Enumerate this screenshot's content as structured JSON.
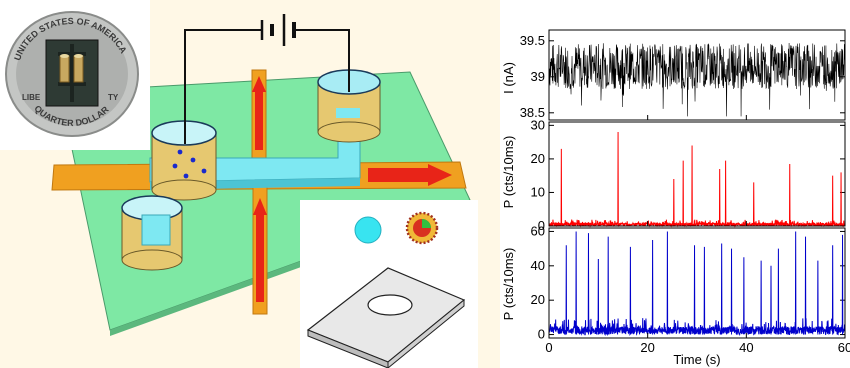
{
  "colors": {
    "background": "#fff8e6",
    "chip": "#7ee8a4",
    "channel": "#7ee8f2",
    "side_channel": "#f0a020",
    "arrow": "#e82418",
    "well_wall": "#e6c870",
    "trace_current": "#000000",
    "trace_red": "#ff0000",
    "trace_blue": "#0000cc"
  },
  "coin_photo": {
    "text_top": "UNITED STATES OF AMERICA",
    "text_bottom": "QUARTER DOLLAR",
    "text_left": "LIBE",
    "text_right": "TY"
  },
  "diagram": {
    "icons": [
      "battery-icon",
      "nanoparticle-icon",
      "virus-icon",
      "membrane-pore-icon"
    ]
  },
  "chart_data": [
    {
      "type": "line",
      "ylabel": "I (nA)",
      "xlim": [
        0,
        60
      ],
      "ylim": [
        38.4,
        39.65
      ],
      "yticks": [
        "39.5",
        "39",
        "38.5"
      ],
      "ytick_values": [
        39.5,
        39.0,
        38.5
      ],
      "series": [
        {
          "color": "#000000",
          "baseline": 39.15,
          "noise_amplitude": 0.32
        }
      ]
    },
    {
      "type": "line",
      "ylabel": "P (cts/10ms)",
      "xlim": [
        0,
        60
      ],
      "ylim": [
        0,
        31
      ],
      "yticks": [
        "30",
        "20",
        "10",
        "0"
      ],
      "ytick_values": [
        30,
        20,
        10,
        0
      ],
      "series": [
        {
          "color": "#ff0000",
          "x": [
            2.5,
            14,
            25.3,
            27.2,
            29,
            34.6,
            35.8,
            41.5,
            48.8,
            57.5,
            59.2
          ],
          "y": [
            23,
            28,
            14,
            19.5,
            24,
            17,
            19.5,
            13,
            18.5,
            15,
            16
          ]
        }
      ]
    },
    {
      "type": "line",
      "ylabel": "P (cts/10ms)",
      "xlabel": "Time (s)",
      "xlim": [
        0,
        60
      ],
      "ylim": [
        -2,
        62
      ],
      "xticks": [
        "0",
        "20",
        "40",
        "60"
      ],
      "xtick_values": [
        0,
        20,
        40,
        60
      ],
      "yticks": [
        "60",
        "40",
        "20",
        "0"
      ],
      "ytick_values": [
        60,
        40,
        20,
        0
      ],
      "series": [
        {
          "color": "#0000cc",
          "x": [
            3.5,
            5.5,
            8,
            10,
            12,
            16.5,
            21,
            24,
            29.5,
            31.5,
            35,
            37,
            39.5,
            43,
            45,
            46.5,
            50,
            52,
            54.5,
            57.5,
            59.5
          ],
          "y": [
            52,
            60,
            59,
            44,
            57,
            51,
            55,
            60,
            52,
            51,
            53,
            50,
            45,
            43,
            40,
            50,
            60,
            57,
            43,
            52,
            58
          ]
        }
      ]
    }
  ]
}
